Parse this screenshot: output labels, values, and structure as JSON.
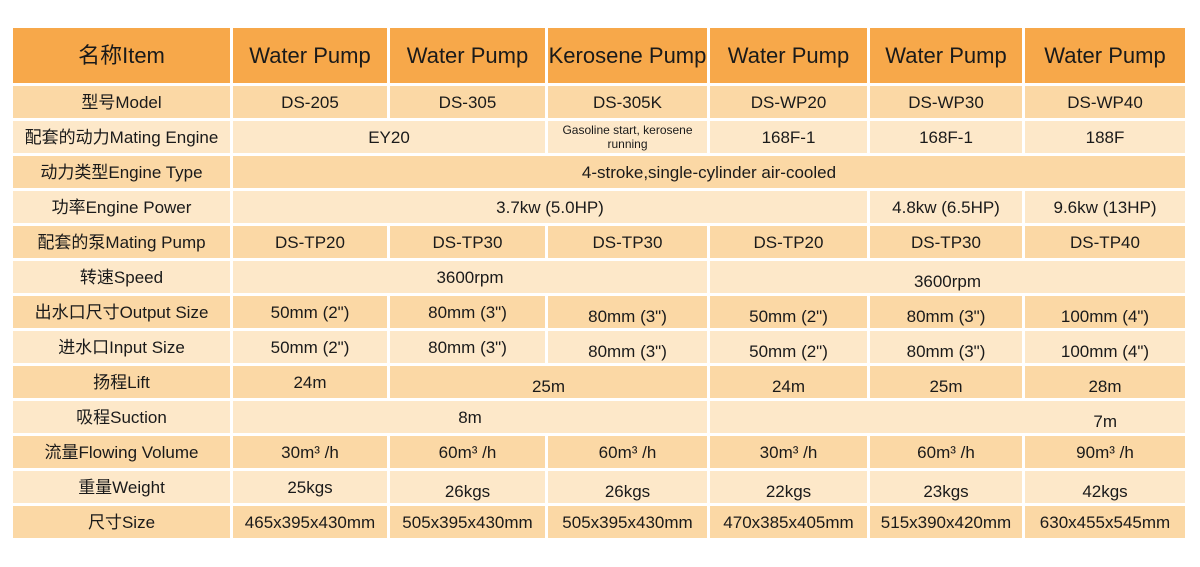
{
  "header": {
    "label": "名称Item",
    "products": [
      "Water Pump",
      "Water Pump",
      "Kerosene Pump",
      "Water Pump",
      "Water Pump",
      "Water Pump"
    ]
  },
  "rows": [
    {
      "label": "型号Model",
      "values": [
        "DS-205",
        "DS-305",
        "DS-305K",
        "DS-WP20",
        "DS-WP30",
        "DS-WP40"
      ]
    },
    {
      "label": "配套的动力Mating Engine",
      "values": [
        "EY20",
        "Gasoline start, kerosene running",
        "168F-1",
        "168F-1",
        "188F"
      ]
    },
    {
      "label": "动力类型Engine Type",
      "values": [
        "4-stroke,single-cylinder air-cooled"
      ]
    },
    {
      "label": "功率Engine Power",
      "values": [
        "3.7kw (5.0HP)",
        "4.8kw (6.5HP)",
        "9.6kw (13HP)"
      ]
    },
    {
      "label": "配套的泵Mating Pump",
      "values": [
        "DS-TP20",
        "DS-TP30",
        "DS-TP30",
        "DS-TP20",
        "DS-TP30",
        "DS-TP40"
      ]
    },
    {
      "label": "转速Speed",
      "values": [
        "3600rpm",
        "3600rpm"
      ]
    },
    {
      "label": "出水口尺寸Output Size",
      "values": [
        "50mm (2\")",
        "80mm (3\")",
        "80mm (3\")",
        "50mm (2\")",
        "80mm (3\")",
        "100mm (4\")"
      ]
    },
    {
      "label": "进水口Input Size",
      "values": [
        "50mm (2\")",
        "80mm (3\")",
        "80mm (3\")",
        "50mm (2\")",
        "80mm (3\")",
        "100mm (4\")"
      ]
    },
    {
      "label": "扬程Lift",
      "values": [
        "24m",
        "25m",
        "24m",
        "25m",
        "28m"
      ]
    },
    {
      "label": "吸程Suction",
      "values": [
        "8m",
        "7m"
      ]
    },
    {
      "label": "流量Flowing Volume",
      "values": [
        "30m³ /h",
        "60m³ /h",
        "60m³ /h",
        "30m³ /h",
        "60m³ /h",
        "90m³ /h"
      ]
    },
    {
      "label": "重量Weight",
      "values": [
        "25kgs",
        "26kgs",
        "26kgs",
        "22kgs",
        "23kgs",
        "42kgs"
      ]
    },
    {
      "label": "尺寸Size",
      "values": [
        "465x395x430mm",
        "505x395x430mm",
        "505x395x430mm",
        "470x385x405mm",
        "515x390x420mm",
        "630x455x545mm"
      ]
    }
  ]
}
